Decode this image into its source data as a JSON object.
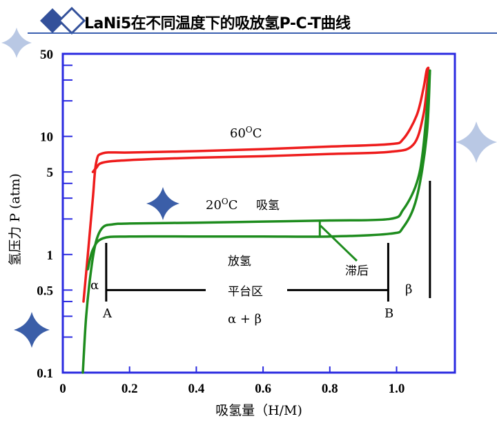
{
  "header": {
    "title": "LaNi5在不同温度下的吸放氢P-C-T曲线"
  },
  "chart_data": {
    "type": "line",
    "xlabel": "吸氢量（H/M)",
    "ylabel": "氢压力 P (atm)",
    "xlim": [
      0,
      1.2
    ],
    "ylim": [
      0.1,
      50
    ],
    "yscale": "log",
    "x_ticks": [
      "0",
      "0.2",
      "0.4",
      "0.6",
      "0.8",
      "1.0"
    ],
    "x_tick_values": [
      0,
      0.2,
      0.4,
      0.6,
      0.8,
      1.0
    ],
    "y_ticks": [
      "0.1",
      "0.5",
      "1",
      "5",
      "10",
      "50"
    ],
    "y_tick_values": [
      0.1,
      0.5,
      1,
      5,
      10,
      50
    ],
    "y_minor_ticks": [
      0.2,
      0.3,
      0.4,
      2,
      3,
      4,
      20,
      30,
      40
    ],
    "series": [
      {
        "color": "#ee1c1c",
        "x": [
          0.062,
          0.075,
          0.09,
          0.1,
          0.12,
          0.2,
          0.4,
          0.6,
          0.8,
          0.98,
          1.02,
          1.06,
          1.08,
          1.09,
          1.095
        ],
        "y": [
          0.4,
          1,
          3,
          6,
          7.2,
          7.3,
          7.5,
          7.8,
          8.2,
          8.6,
          9.5,
          15,
          25,
          36,
          38
        ]
      },
      {
        "color": "#ee1c1c",
        "x": [
          1.095,
          1.093,
          1.08,
          1.05,
          0.98,
          0.8,
          0.6,
          0.4,
          0.2,
          0.12,
          0.1,
          0.09
        ],
        "y": [
          38,
          30,
          15,
          8.5,
          7.4,
          7.1,
          6.8,
          6.6,
          6.3,
          6,
          5.4,
          5
        ]
      },
      {
        "color": "#1e8c1e",
        "x": [
          0.06,
          0.07,
          0.085,
          0.1,
          0.12,
          0.15,
          0.2,
          0.4,
          0.6,
          0.8,
          0.98,
          1.02,
          1.06,
          1.08,
          1.1
        ],
        "y": [
          0.1,
          0.3,
          0.75,
          1.3,
          1.7,
          1.8,
          1.83,
          1.86,
          1.9,
          1.94,
          2,
          2.4,
          4,
          8,
          36
        ]
      },
      {
        "color": "#1e8c1e",
        "x": [
          1.1,
          1.09,
          1.06,
          1.02,
          0.98,
          0.8,
          0.6,
          0.4,
          0.2,
          0.12,
          0.09,
          0.075
        ],
        "y": [
          36,
          10,
          3,
          1.7,
          1.5,
          1.42,
          1.42,
          1.42,
          1.42,
          1.37,
          1.1,
          0.75
        ]
      }
    ],
    "annotations": {
      "temp_60": "60",
      "temp_60_sup": "O",
      "temp_60_unit": "C",
      "temp_20": "20",
      "temp_20_sup": "O",
      "temp_20_unit": "C",
      "absorb": "吸氢",
      "desorb": "放氢",
      "hysteresis": "滞后",
      "alpha": "α",
      "beta": "β",
      "plateau": "平台区",
      "point_a": "A",
      "point_b": "B",
      "alpha_beta": "α + β"
    },
    "markers": {
      "point_a_x": 0.13,
      "point_b_x": 0.975,
      "plateau_y": 0.5,
      "beta_x": 1.1,
      "hysteresis_x": 0.77,
      "hysteresis_y_top": 1.9,
      "hysteresis_y_bottom": 1.42
    },
    "grid": false
  },
  "colors": {
    "frame": "#2a2ae0",
    "sparkle_dark": "#3b5ea8",
    "sparkle_light": "#b9c8e4",
    "logo_dark": "#33509a",
    "header_rule": "#3a5fb0"
  }
}
